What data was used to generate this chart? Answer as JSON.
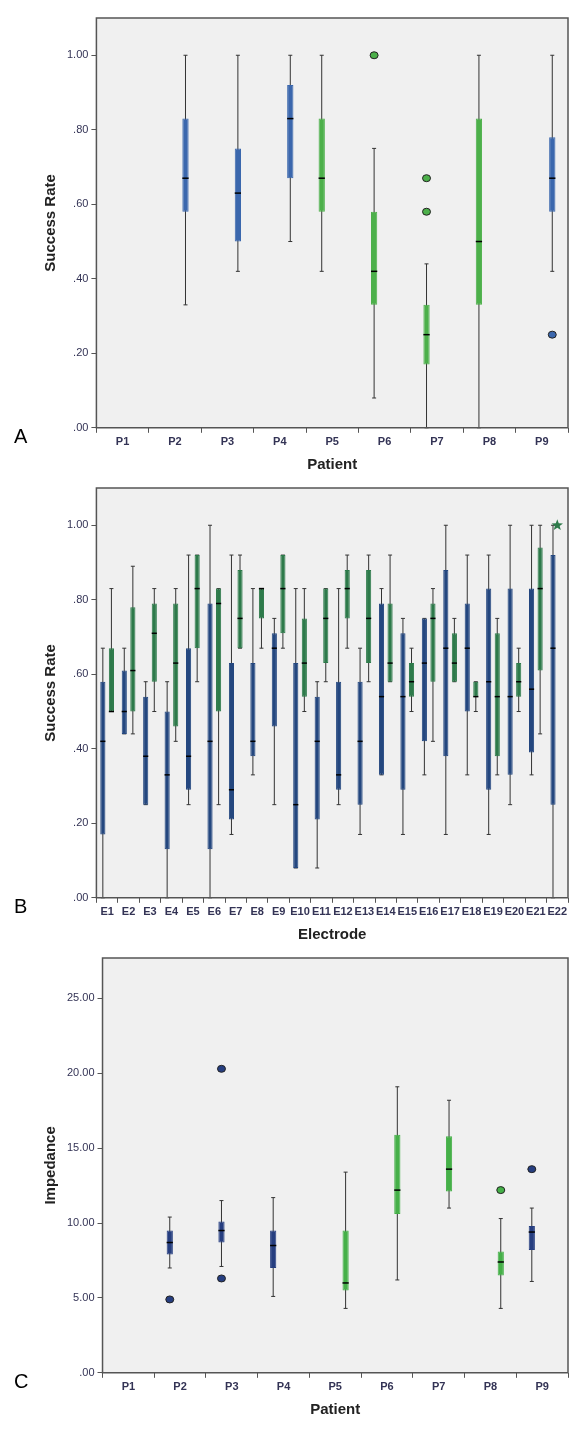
{
  "chart_data": [
    {
      "type": "box",
      "xlabel": "Patient",
      "ylabel": "Success Rate",
      "annotations": [
        "A"
      ],
      "categories": [
        "P1",
        "P2",
        "P3",
        "P4",
        "P5",
        "P6",
        "P7",
        "P8",
        "P9"
      ],
      "ylim": [
        0,
        1.1
      ],
      "yticks": [
        {
          "value": 0,
          "label": ".00"
        },
        {
          "value": 0.2,
          "label": ".20"
        },
        {
          "value": 0.4,
          "label": ".40"
        },
        {
          "value": 0.6,
          "label": ".60"
        },
        {
          "value": 0.8,
          "label": ".80"
        },
        {
          "value": 1,
          "label": "1.00"
        }
      ],
      "series": [
        {
          "color": "#4cb04a",
          "boxes": [
            null,
            null,
            null,
            null,
            {
              "low": 0.42,
              "q1": 0.58,
              "median": 0.67,
              "q3": 0.83,
              "high": 1.0
            },
            {
              "low": 0.08,
              "q1": 0.33,
              "median": 0.42,
              "q3": 0.58,
              "high": 0.75,
              "outliers": [
                1.0
              ]
            },
            {
              "low": 0,
              "q1": 0.17,
              "median": 0.25,
              "q3": 0.33,
              "high": 0.44,
              "outliers": [
                0.58,
                0.67
              ]
            },
            {
              "low": 0,
              "q1": 0.33,
              "median": 0.5,
              "q3": 0.83,
              "high": 1.0
            },
            null
          ]
        },
        {
          "color": "#3b67ad",
          "boxes": [
            null,
            {
              "low": 0.33,
              "q1": 0.58,
              "median": 0.67,
              "q3": 0.83,
              "high": 1.0
            },
            {
              "low": 0.42,
              "q1": 0.5,
              "median": 0.63,
              "q3": 0.75,
              "high": 1.0
            },
            {
              "low": 0.5,
              "q1": 0.67,
              "median": 0.83,
              "q3": 0.92,
              "high": 1.0
            },
            null,
            null,
            null,
            null,
            {
              "low": 0.42,
              "q1": 0.58,
              "median": 0.67,
              "q3": 0.78,
              "high": 1.0,
              "outliers": [
                0.25
              ]
            }
          ]
        }
      ]
    },
    {
      "type": "box",
      "xlabel": "Electrode",
      "ylabel": "Success Rate",
      "annotations": [
        "B"
      ],
      "categories": [
        "E1",
        "E2",
        "E3",
        "E4",
        "E5",
        "E6",
        "E7",
        "E8",
        "E9",
        "E10",
        "E11",
        "E12",
        "E13",
        "E14",
        "E15",
        "E16",
        "E17",
        "E18",
        "E19",
        "E20",
        "E21",
        "E22"
      ],
      "ylim": [
        0,
        1.1
      ],
      "yticks": [
        {
          "value": 0,
          "label": ".00"
        },
        {
          "value": 0.2,
          "label": ".20"
        },
        {
          "value": 0.4,
          "label": ".40"
        },
        {
          "value": 0.6,
          "label": ".60"
        },
        {
          "value": 0.8,
          "label": ".80"
        },
        {
          "value": 1,
          "label": "1.00"
        }
      ],
      "series": [
        {
          "color": "#24477f",
          "boxes": [
            {
              "low": 0,
              "q1": 0.17,
              "median": 0.42,
              "q3": 0.58,
              "high": 0.67
            },
            {
              "low": 0.44,
              "q1": 0.44,
              "median": 0.5,
              "q3": 0.61,
              "high": 0.67
            },
            {
              "low": 0.25,
              "q1": 0.25,
              "median": 0.38,
              "q3": 0.54,
              "high": 0.58
            },
            {
              "low": 0,
              "q1": 0.13,
              "median": 0.33,
              "q3": 0.5,
              "high": 0.58
            },
            {
              "low": 0.25,
              "q1": 0.29,
              "median": 0.38,
              "q3": 0.67,
              "high": 0.92
            },
            {
              "low": 0,
              "q1": 0.13,
              "median": 0.42,
              "q3": 0.79,
              "high": 1.0
            },
            {
              "low": 0.17,
              "q1": 0.21,
              "median": 0.29,
              "q3": 0.63,
              "high": 0.92
            },
            {
              "low": 0.33,
              "q1": 0.38,
              "median": 0.42,
              "q3": 0.63,
              "high": 0.83
            },
            {
              "low": 0.25,
              "q1": 0.46,
              "median": 0.67,
              "q3": 0.71,
              "high": 0.75
            },
            {
              "low": 0.08,
              "q1": 0.08,
              "median": 0.25,
              "q3": 0.63,
              "high": 0.83
            },
            {
              "low": 0.08,
              "q1": 0.21,
              "median": 0.42,
              "q3": 0.54,
              "high": 0.58
            },
            {
              "low": 0.25,
              "q1": 0.29,
              "median": 0.33,
              "q3": 0.58,
              "high": 0.83
            },
            {
              "low": 0.17,
              "q1": 0.25,
              "median": 0.42,
              "q3": 0.58,
              "high": 0.67
            },
            {
              "low": 0.33,
              "q1": 0.33,
              "median": 0.54,
              "q3": 0.79,
              "high": 0.83
            },
            {
              "low": 0.17,
              "q1": 0.29,
              "median": 0.54,
              "q3": 0.71,
              "high": 0.75
            },
            {
              "low": 0.33,
              "q1": 0.42,
              "median": 0.63,
              "q3": 0.75,
              "high": 0.75
            },
            {
              "low": 0.17,
              "q1": 0.38,
              "median": 0.67,
              "q3": 0.88,
              "high": 1.0
            },
            {
              "low": 0.33,
              "q1": 0.5,
              "median": 0.67,
              "q3": 0.79,
              "high": 0.92
            },
            {
              "low": 0.17,
              "q1": 0.29,
              "median": 0.58,
              "q3": 0.83,
              "high": 0.92
            },
            {
              "low": 0.25,
              "q1": 0.33,
              "median": 0.54,
              "q3": 0.83,
              "high": 1.0
            },
            {
              "low": 0.33,
              "q1": 0.39,
              "median": 0.56,
              "q3": 0.83,
              "high": 1.0
            },
            {
              "low": 0,
              "q1": 0.25,
              "median": 0.67,
              "q3": 0.92,
              "high": 1.0
            }
          ]
        },
        {
          "color": "#2d7a4a",
          "boxes": [
            {
              "low": 0.5,
              "q1": 0.5,
              "median": 0.5,
              "q3": 0.67,
              "high": 0.83
            },
            {
              "low": 0.44,
              "q1": 0.5,
              "median": 0.61,
              "q3": 0.78,
              "high": 0.89
            },
            {
              "low": 0.5,
              "q1": 0.58,
              "median": 0.71,
              "q3": 0.79,
              "high": 0.83
            },
            {
              "low": 0.42,
              "q1": 0.46,
              "median": 0.63,
              "q3": 0.79,
              "high": 0.83
            },
            {
              "low": 0.58,
              "q1": 0.67,
              "median": 0.83,
              "q3": 0.92,
              "high": 0.92
            },
            {
              "low": 0.25,
              "q1": 0.5,
              "median": 0.79,
              "q3": 0.83,
              "high": 0.83
            },
            {
              "low": 0.67,
              "q1": 0.67,
              "median": 0.75,
              "q3": 0.88,
              "high": 0.92
            },
            {
              "low": 0.67,
              "q1": 0.75,
              "median": 0.83,
              "q3": 0.83,
              "high": 0.83
            },
            {
              "low": 0.67,
              "q1": 0.71,
              "median": 0.83,
              "q3": 0.92,
              "high": 0.92
            },
            {
              "low": 0.5,
              "q1": 0.54,
              "median": 0.63,
              "q3": 0.75,
              "high": 0.83
            },
            {
              "low": 0.58,
              "q1": 0.63,
              "median": 0.75,
              "q3": 0.83,
              "high": 0.83
            },
            {
              "low": 0.67,
              "q1": 0.75,
              "median": 0.83,
              "q3": 0.88,
              "high": 0.92
            },
            {
              "low": 0.58,
              "q1": 0.63,
              "median": 0.75,
              "q3": 0.88,
              "high": 0.92
            },
            {
              "low": 0.58,
              "q1": 0.58,
              "median": 0.63,
              "q3": 0.79,
              "high": 0.92
            },
            {
              "low": 0.5,
              "q1": 0.54,
              "median": 0.58,
              "q3": 0.63,
              "high": 0.67
            },
            {
              "low": 0.42,
              "q1": 0.58,
              "median": 0.75,
              "q3": 0.79,
              "high": 0.83
            },
            {
              "low": 0.58,
              "q1": 0.58,
              "median": 0.63,
              "q3": 0.71,
              "high": 0.75
            },
            {
              "low": 0.5,
              "q1": 0.54,
              "median": 0.54,
              "q3": 0.58,
              "high": 0.58
            },
            {
              "low": 0.33,
              "q1": 0.38,
              "median": 0.54,
              "q3": 0.71,
              "high": 0.75
            },
            {
              "low": 0.5,
              "q1": 0.54,
              "median": 0.58,
              "q3": 0.63,
              "high": 0.67
            },
            {
              "low": 0.44,
              "q1": 0.61,
              "median": 0.83,
              "q3": 0.94,
              "high": 1.0
            },
            null
          ]
        },
        {
          "type": "scatter",
          "color": "#2d7a4a",
          "marker": "star",
          "x": [
            "E22"
          ],
          "values": [
            1.0
          ]
        }
      ]
    },
    {
      "type": "box",
      "xlabel": "Patient",
      "ylabel": "Impedance",
      "annotations": [
        "C"
      ],
      "categories": [
        "P1",
        "P2",
        "P3",
        "P4",
        "P5",
        "P6",
        "P7",
        "P8",
        "P9"
      ],
      "ylim": [
        0,
        27.7
      ],
      "yticks": [
        {
          "value": 0,
          "label": ".00"
        },
        {
          "value": 5,
          "label": "5.00"
        },
        {
          "value": 10,
          "label": "10.00"
        },
        {
          "value": 15,
          "label": "15.00"
        },
        {
          "value": 20,
          "label": "20.00"
        },
        {
          "value": 25,
          "label": "25.00"
        }
      ],
      "series": [
        {
          "color": "#263e80",
          "boxes": [
            null,
            {
              "low": 7.0,
              "q1": 7.9,
              "median": 8.7,
              "q3": 9.5,
              "high": 10.4,
              "outliers": [
                4.9
              ]
            },
            {
              "low": 7.1,
              "q1": 8.7,
              "median": 9.5,
              "q3": 10.1,
              "high": 11.5,
              "outliers": [
                6.3,
                20.3
              ]
            },
            {
              "low": 5.1,
              "q1": 7.0,
              "median": 8.5,
              "q3": 9.5,
              "high": 11.7
            },
            null,
            null,
            null,
            null,
            {
              "low": 6.1,
              "q1": 8.2,
              "median": 9.4,
              "q3": 9.8,
              "high": 11.0,
              "outliers": [
                13.6
              ]
            }
          ]
        },
        {
          "color": "#45b048",
          "boxes": [
            null,
            null,
            null,
            null,
            {
              "low": 4.3,
              "q1": 5.5,
              "median": 6.0,
              "q3": 9.5,
              "high": 13.4
            },
            {
              "low": 6.2,
              "q1": 10.6,
              "median": 12.2,
              "q3": 15.9,
              "high": 19.1
            },
            {
              "low": 11.0,
              "q1": 12.1,
              "median": 13.6,
              "q3": 15.8,
              "high": 18.2
            },
            {
              "low": 4.3,
              "q1": 6.5,
              "median": 7.4,
              "q3": 8.1,
              "high": 10.3,
              "outliers": [
                12.2
              ]
            },
            null
          ]
        }
      ]
    }
  ]
}
